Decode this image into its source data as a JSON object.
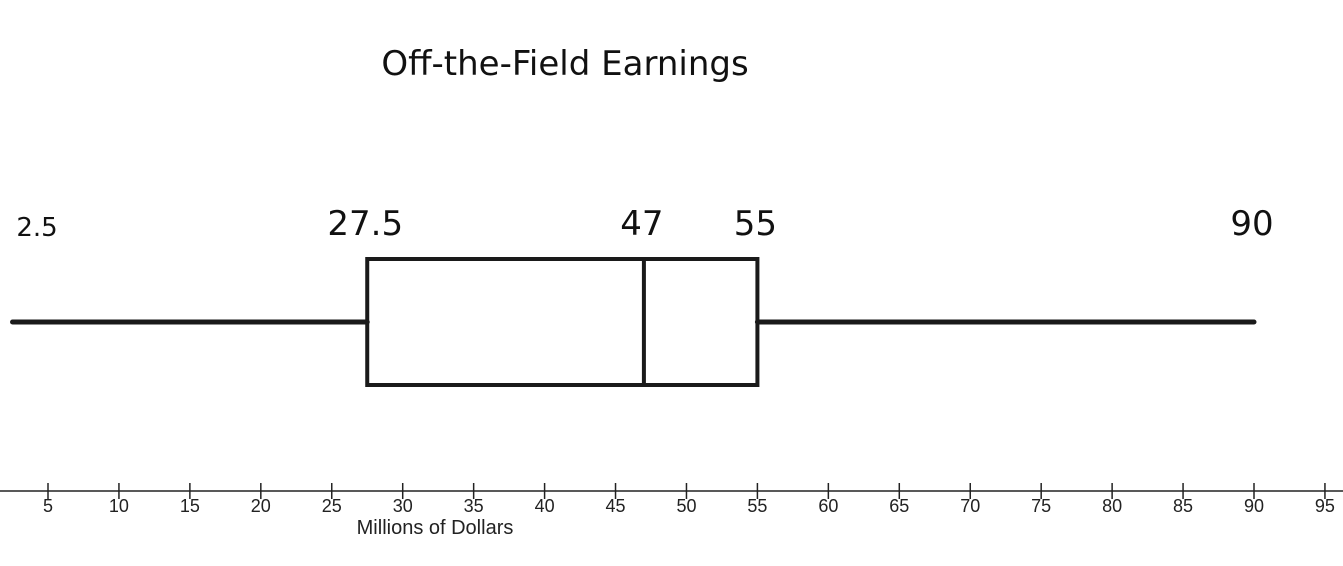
{
  "chart_data": {
    "type": "boxplot",
    "title": "Off-the-Field Earnings",
    "xlabel": "Millions of Dollars",
    "ylabel": "",
    "xlim": [
      -1,
      95.5
    ],
    "ticks": [
      5,
      10,
      15,
      20,
      25,
      30,
      35,
      40,
      45,
      50,
      55,
      60,
      65,
      70,
      75,
      80,
      85,
      90,
      95
    ],
    "grid": false,
    "five_number_summary": {
      "min": 2.5,
      "q1": 27.5,
      "median": 47,
      "q3": 55,
      "max": 90
    },
    "value_labels": [
      "2.5",
      "27.5",
      "47",
      "55",
      "90"
    ]
  }
}
